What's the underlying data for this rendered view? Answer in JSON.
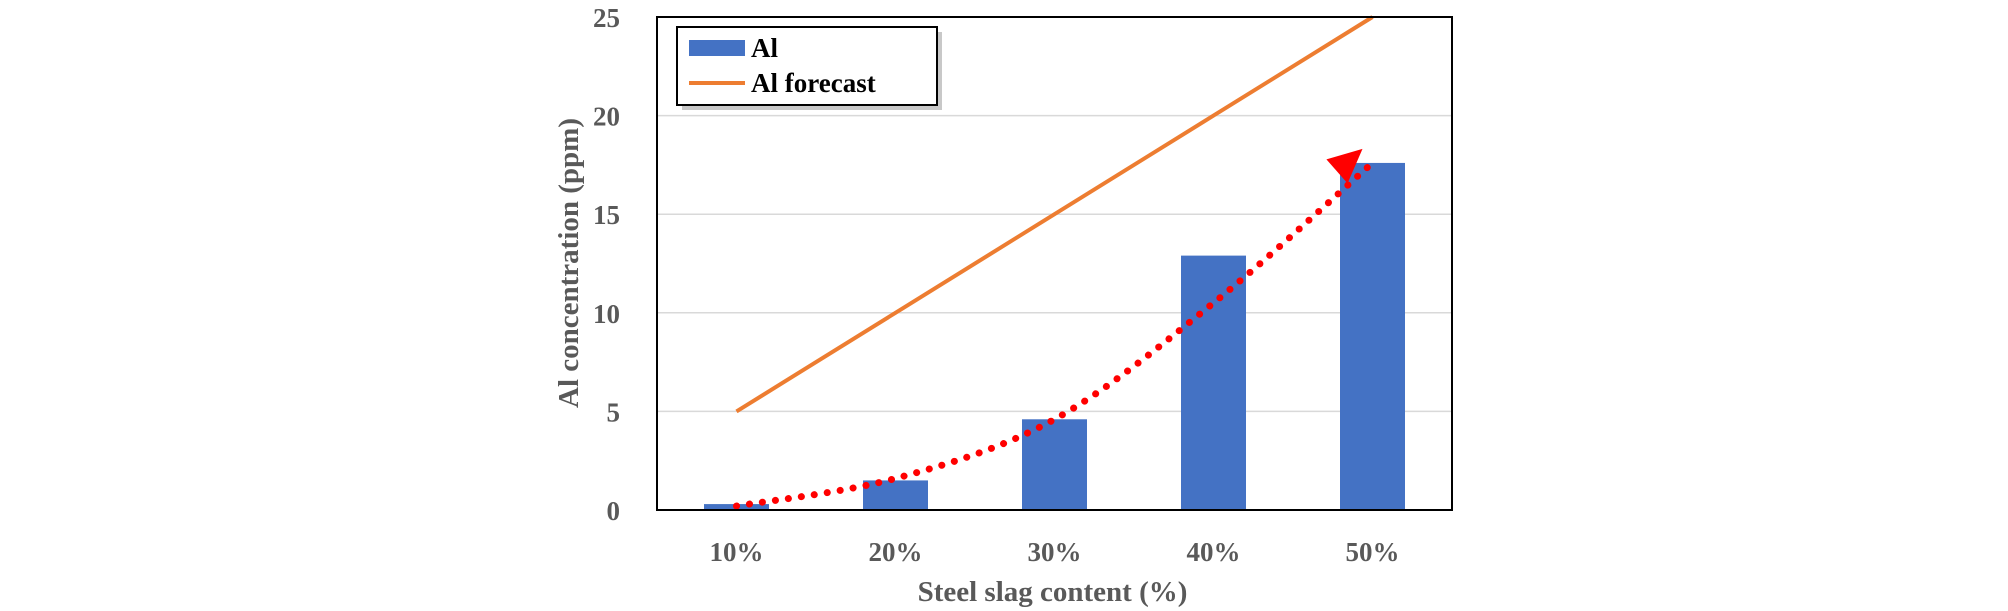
{
  "chart_data": {
    "type": "bar",
    "categories": [
      "10%",
      "20%",
      "30%",
      "40%",
      "50%"
    ],
    "series": [
      {
        "name": "Al",
        "kind": "bar",
        "color": "#4472C4",
        "values": [
          0.3,
          1.5,
          4.6,
          12.9,
          17.6
        ]
      },
      {
        "name": "Al forecast",
        "kind": "line",
        "color": "#ED7D31",
        "values": [
          5,
          10,
          15,
          20,
          25
        ]
      }
    ],
    "trend_arrow": {
      "color": "#FF0000",
      "style": "dotted",
      "values": [
        0.2,
        1.6,
        4.6,
        10.5,
        17.6
      ]
    },
    "xlabel": "Steel slag content (%)",
    "ylabel": "Al concentration (ppm)",
    "ylim": [
      0,
      25
    ],
    "yticks": [
      "0",
      "5",
      "10",
      "15",
      "20",
      "25"
    ],
    "grid": true,
    "legend_position": "top-left"
  }
}
